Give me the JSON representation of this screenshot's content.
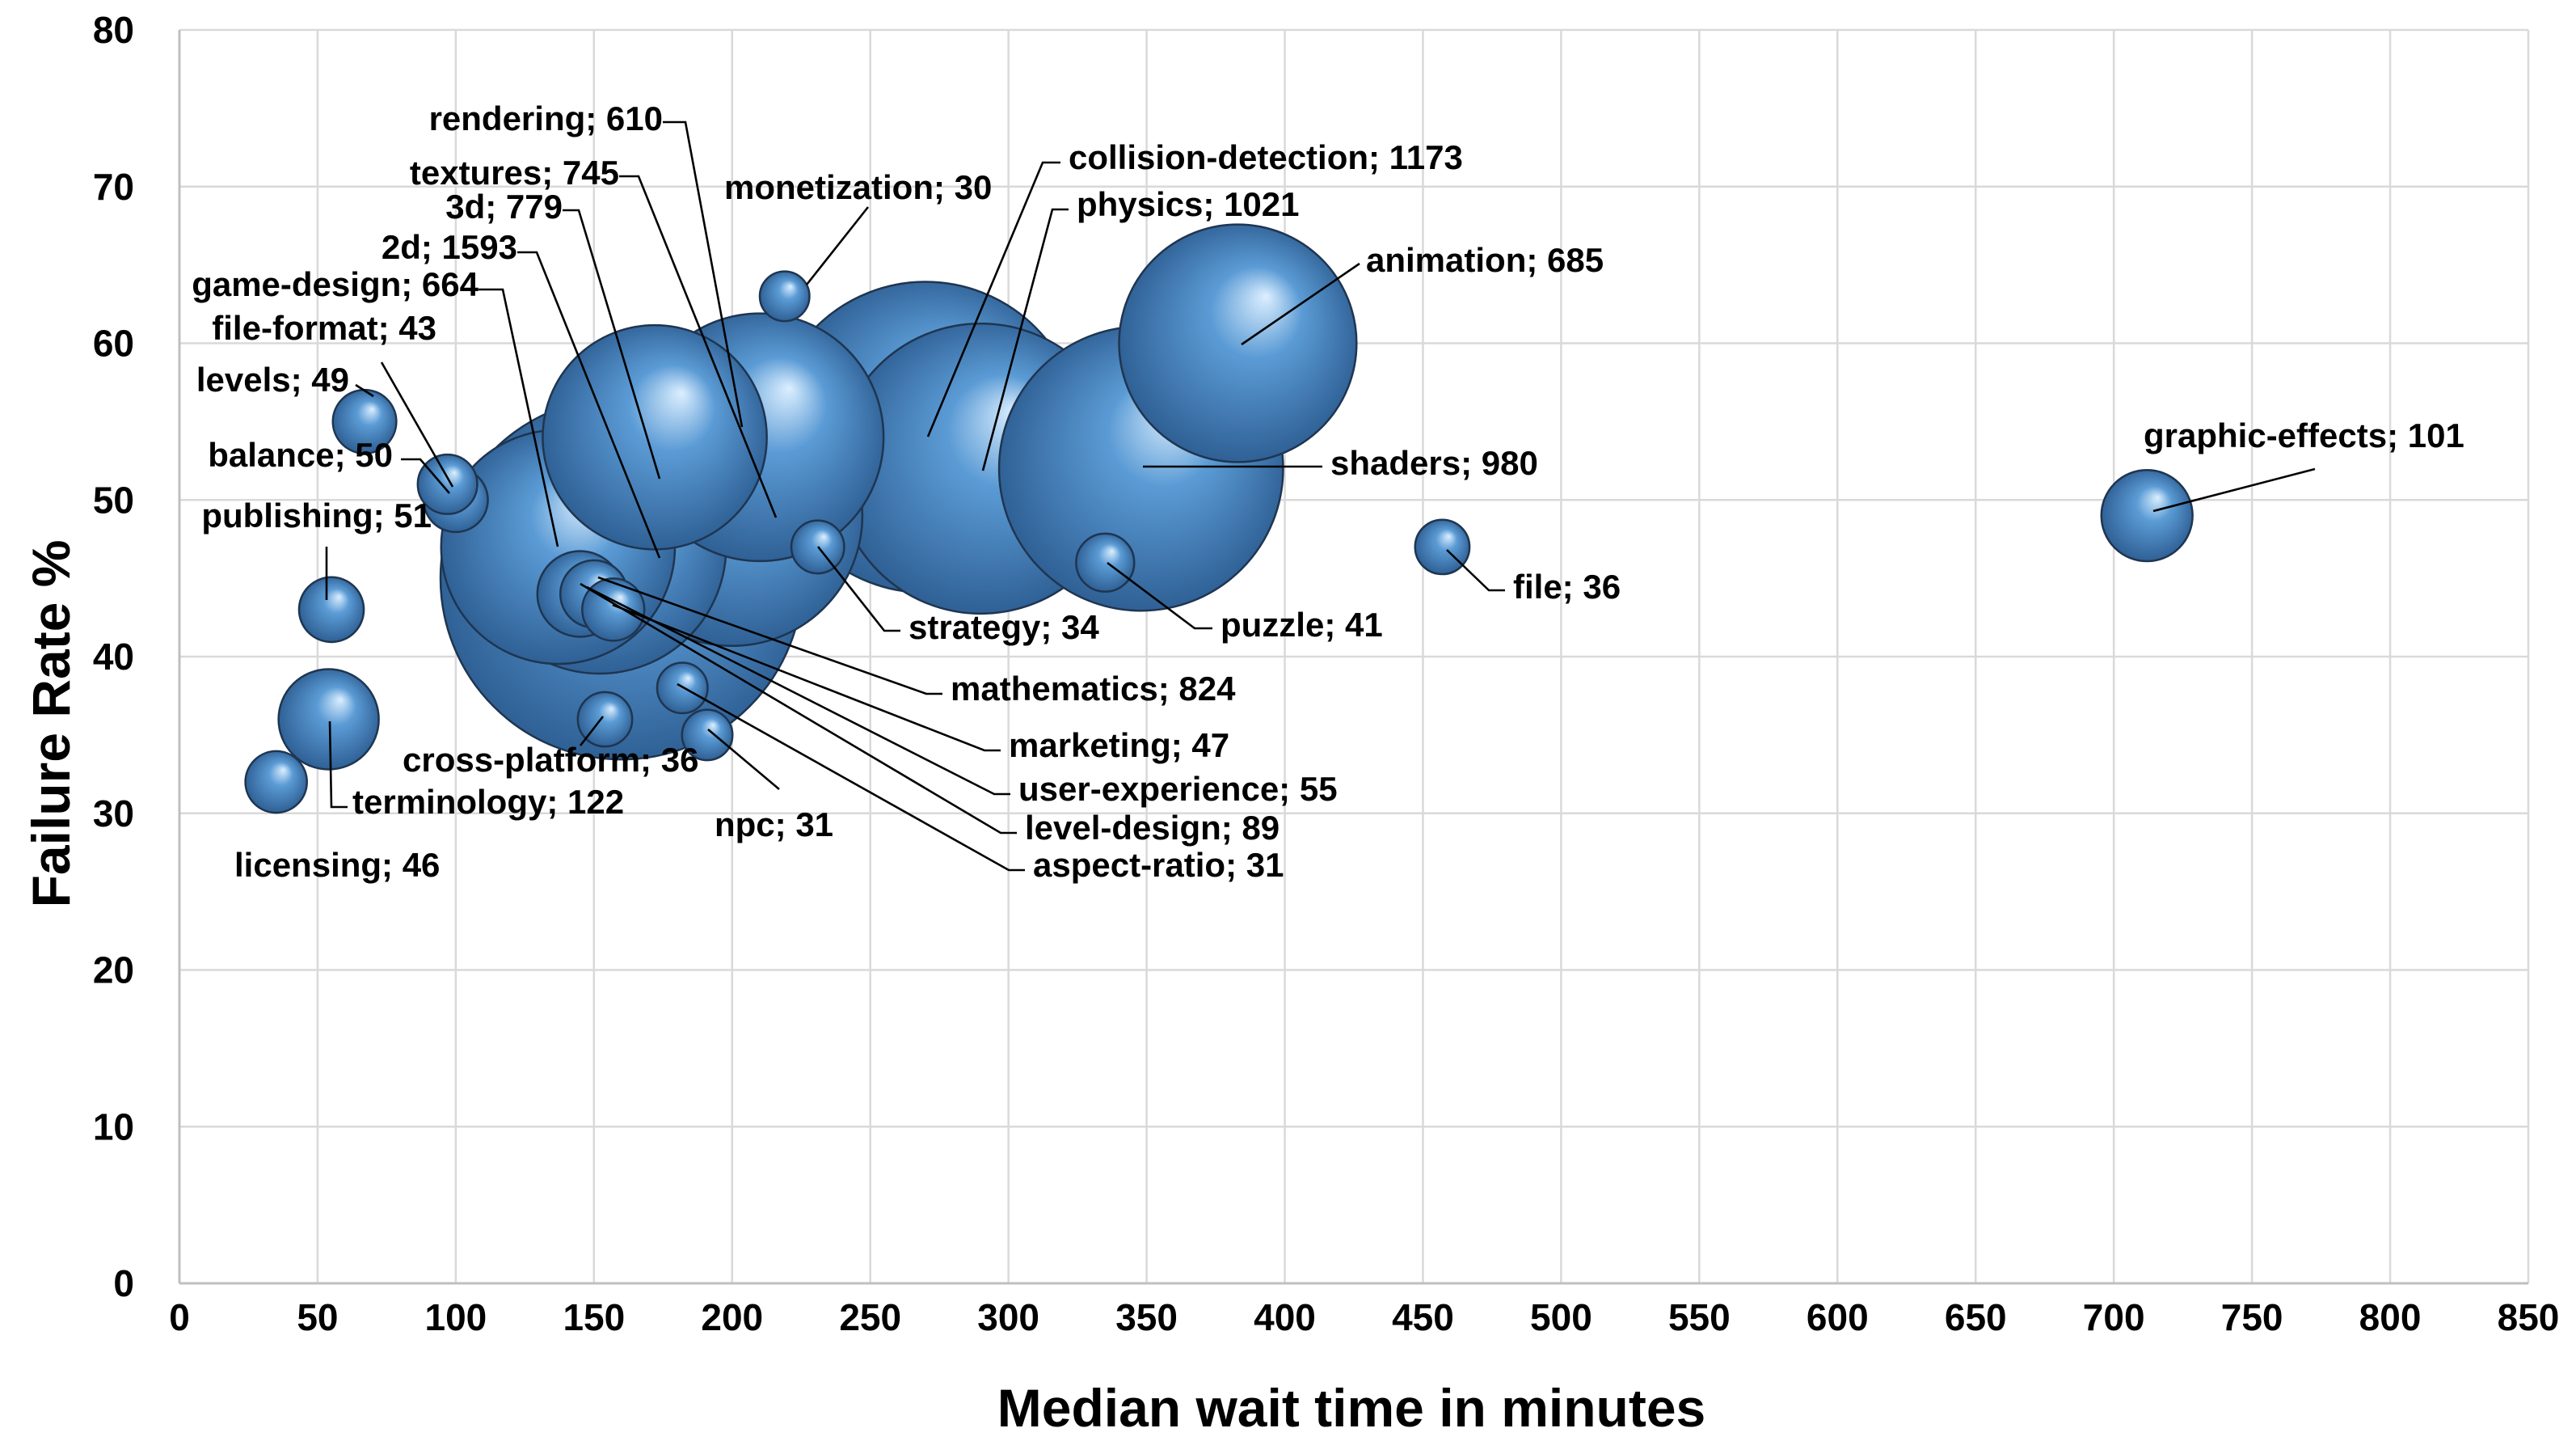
{
  "chart_data": {
    "type": "bubble",
    "title": "",
    "xlabel": "Median wait time in minutes",
    "ylabel": "Failure Rate %",
    "xlim": [
      0,
      850
    ],
    "ylim": [
      0,
      80
    ],
    "x_ticks": [
      0,
      50,
      100,
      150,
      200,
      250,
      300,
      350,
      400,
      450,
      500,
      550,
      600,
      650,
      700,
      750,
      800,
      850
    ],
    "y_ticks": [
      0,
      10,
      20,
      30,
      40,
      50,
      60,
      70,
      80
    ],
    "grid": true,
    "colors": {
      "bubble": "#5b9bd5",
      "bubble_light": "#dcefff",
      "bubble_dark": "#2a5a8e",
      "grid": "#d9d9d9"
    },
    "points": [
      {
        "name": "rendering",
        "count": 610,
        "x": 172,
        "y": 54,
        "label": "rendering; 610"
      },
      {
        "name": "collision-detection",
        "count": 1173,
        "x": 270,
        "y": 54,
        "label": "collision-detection; 1173"
      },
      {
        "name": "2d",
        "count": 1593,
        "x": 160,
        "y": 45,
        "label": "2d; 1593"
      },
      {
        "name": "physics",
        "count": 1021,
        "x": 290,
        "y": 52,
        "label": "physics; 1021"
      },
      {
        "name": "shaders",
        "count": 980,
        "x": 348,
        "y": 52,
        "label": "shaders; 980"
      },
      {
        "name": "mathematics",
        "count": 824,
        "x": 200,
        "y": 49,
        "label": "mathematics; 824"
      },
      {
        "name": "3d",
        "count": 779,
        "x": 152,
        "y": 47,
        "label": "3d; 779"
      },
      {
        "name": "textures",
        "count": 745,
        "x": 210,
        "y": 54,
        "label": "textures; 745"
      },
      {
        "name": "animation",
        "count": 685,
        "x": 383,
        "y": 60,
        "label": "animation; 685"
      },
      {
        "name": "game-design",
        "count": 664,
        "x": 137,
        "y": 47,
        "label": "game-design; 664"
      },
      {
        "name": "terminology",
        "count": 122,
        "x": 54,
        "y": 36,
        "label": "terminology; 122"
      },
      {
        "name": "graphic-effects",
        "count": 101,
        "x": 712,
        "y": 49,
        "label": "graphic-effects; 101"
      },
      {
        "name": "level-design",
        "count": 89,
        "x": 145,
        "y": 44,
        "label": "level-design; 89"
      },
      {
        "name": "user-experience",
        "count": 55,
        "x": 150,
        "y": 44,
        "label": "user-experience; 55"
      },
      {
        "name": "publishing",
        "count": 51,
        "x": 55,
        "y": 43,
        "label": "publishing; 51"
      },
      {
        "name": "balance",
        "count": 50,
        "x": 100,
        "y": 50,
        "label": "balance; 50"
      },
      {
        "name": "levels",
        "count": 49,
        "x": 67,
        "y": 55,
        "label": "levels; 49"
      },
      {
        "name": "marketing",
        "count": 47,
        "x": 157,
        "y": 43,
        "label": "marketing; 47"
      },
      {
        "name": "licensing",
        "count": 46,
        "x": 35,
        "y": 32,
        "label": "licensing; 46"
      },
      {
        "name": "file-format",
        "count": 43,
        "x": 97,
        "y": 51,
        "label": "file-format; 43"
      },
      {
        "name": "puzzle",
        "count": 41,
        "x": 335,
        "y": 46,
        "label": "puzzle; 41"
      },
      {
        "name": "file",
        "count": 36,
        "x": 457,
        "y": 47,
        "label": "file; 36"
      },
      {
        "name": "cross-platform",
        "count": 36,
        "x": 154,
        "y": 36,
        "label": "cross-platform; 36"
      },
      {
        "name": "strategy",
        "count": 34,
        "x": 231,
        "y": 47,
        "label": "strategy; 34"
      },
      {
        "name": "npc",
        "count": 31,
        "x": 191,
        "y": 35,
        "label": "npc; 31"
      },
      {
        "name": "aspect-ratio",
        "count": 31,
        "x": 182,
        "y": 38,
        "label": "aspect-ratio; 31"
      },
      {
        "name": "monetization",
        "count": 30,
        "x": 219,
        "y": 63,
        "label": "monetization; 30"
      }
    ]
  }
}
